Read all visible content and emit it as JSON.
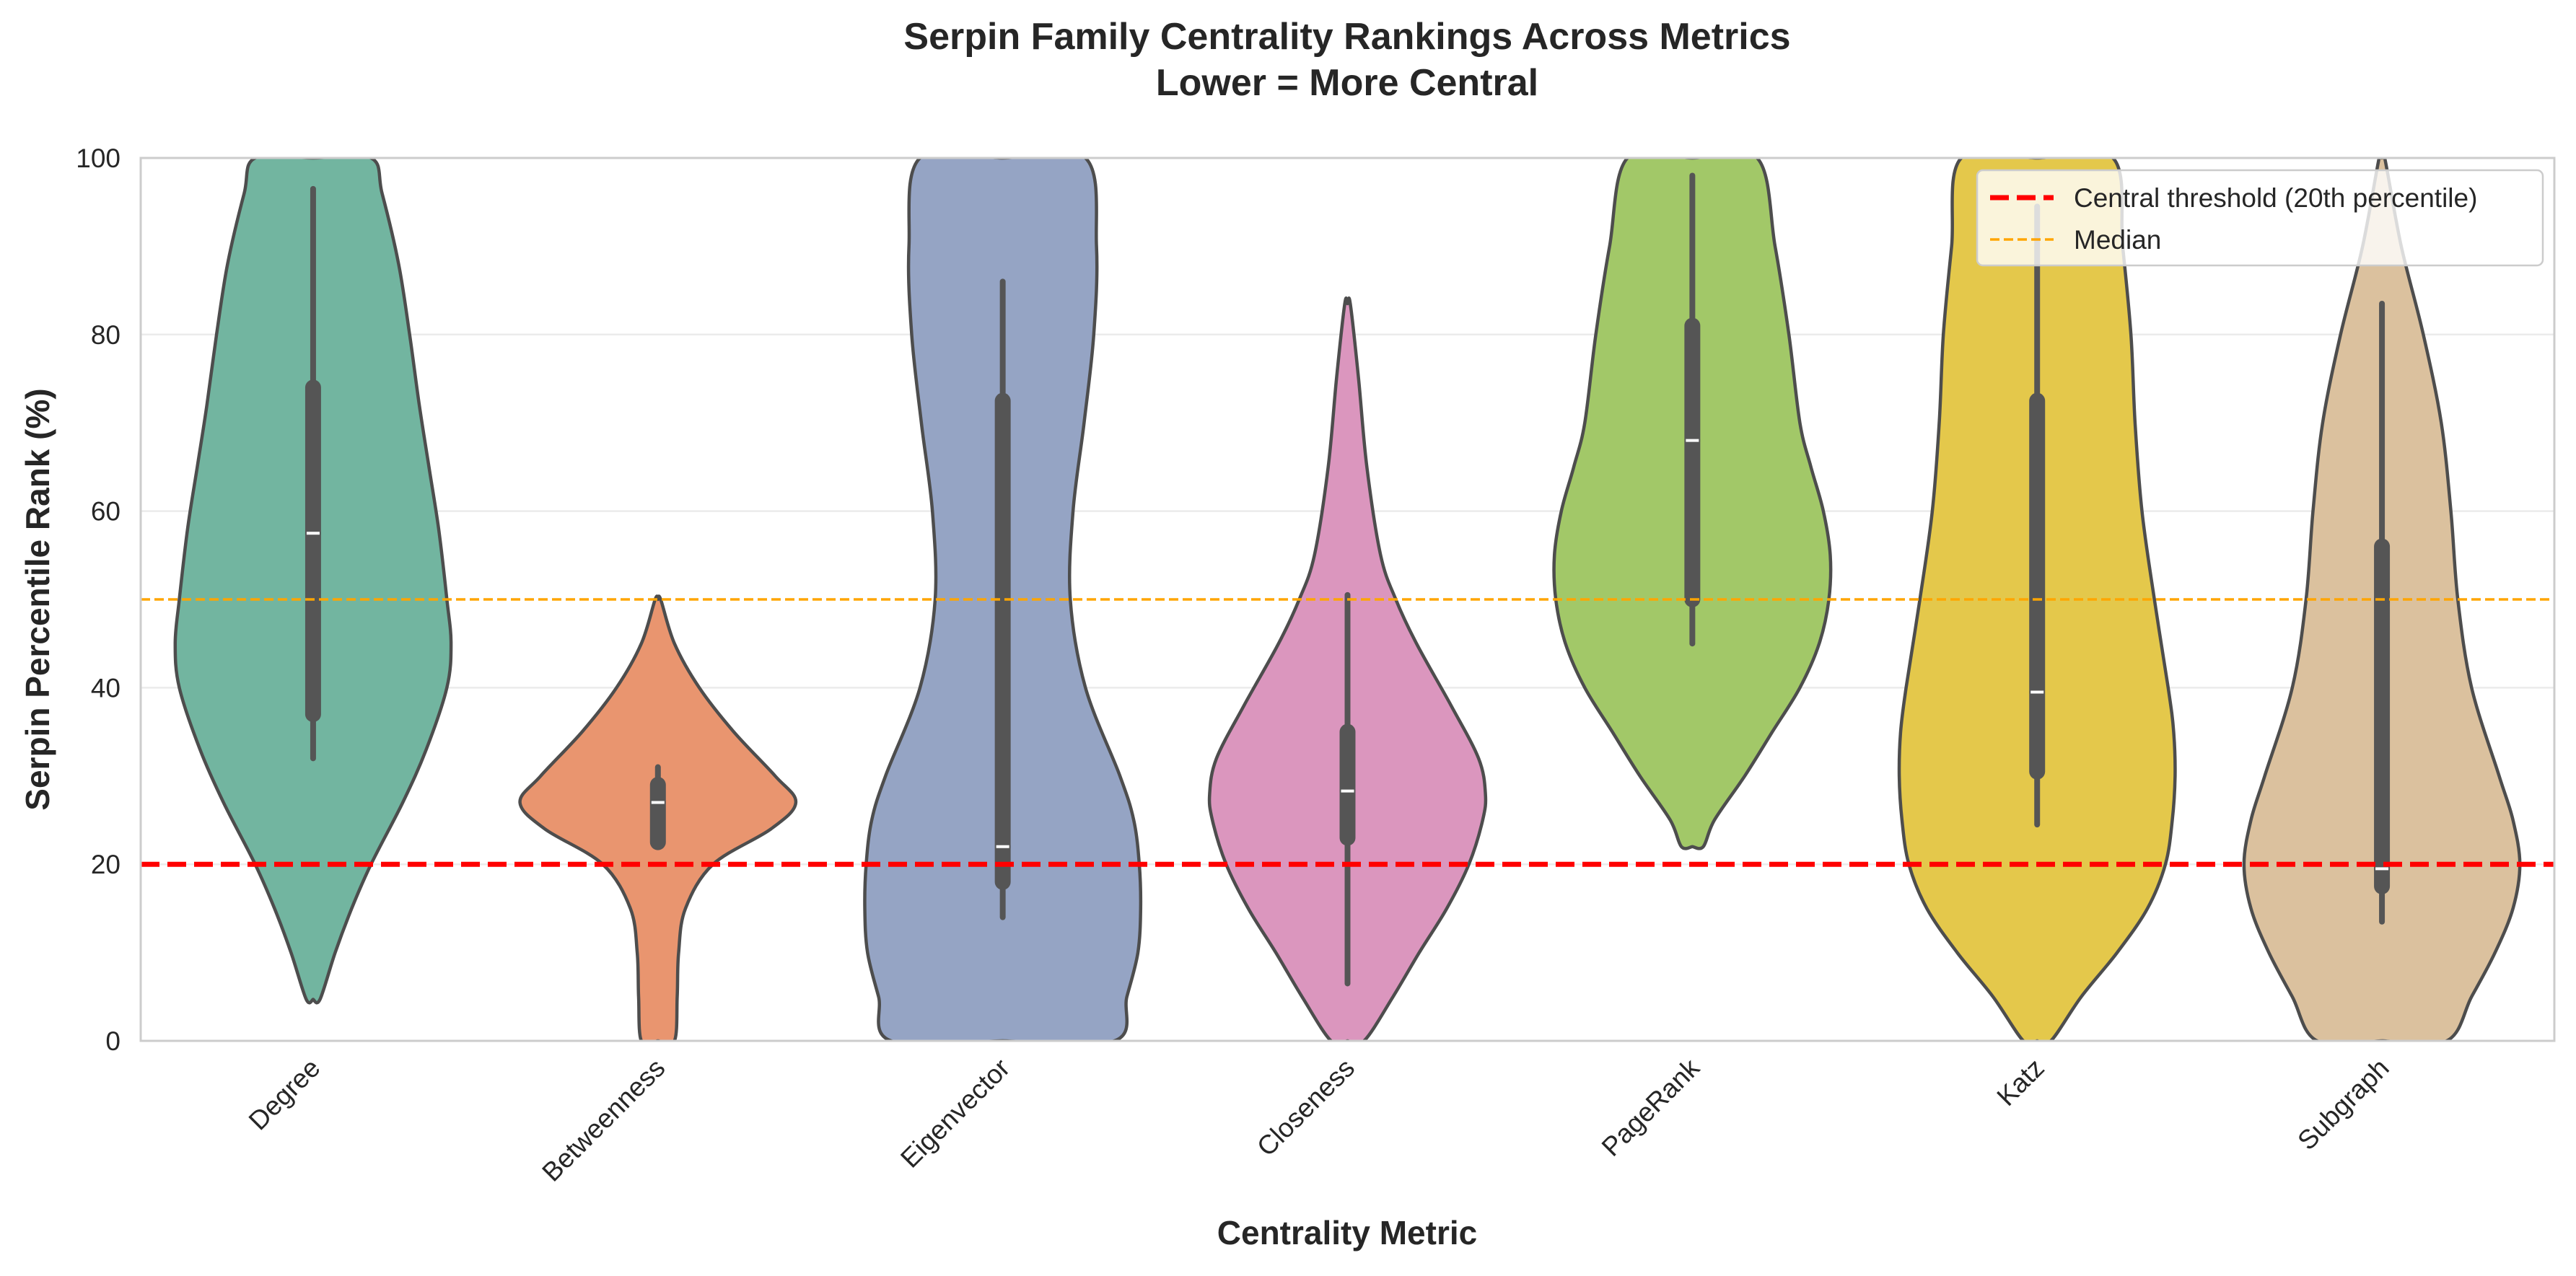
{
  "chart_data": {
    "type": "violin",
    "title": "Serpin Family Centrality Rankings Across Metrics",
    "subtitle": "Lower = More Central",
    "xlabel": "Centrality Metric",
    "ylabel": "Serpin Percentile Rank (%)",
    "ylim": [
      0,
      100
    ],
    "yticks": [
      0,
      20,
      40,
      60,
      80,
      100
    ],
    "grid": "horizontal",
    "legend_position": "top-right",
    "categories": [
      "Degree",
      "Betweenness",
      "Eigenvector",
      "Closeness",
      "PageRank",
      "Katz",
      "Subgraph"
    ],
    "series": [
      {
        "category": "Degree",
        "color": "#72b5a0",
        "median": 57.5,
        "q1": 37,
        "q3": 74,
        "whisker_low": 32,
        "whisker_high": 96.5,
        "density": [
          [
            4.7,
            0.05
          ],
          [
            10,
            0.16
          ],
          [
            15,
            0.28
          ],
          [
            20,
            0.42
          ],
          [
            27,
            0.65
          ],
          [
            33,
            0.82
          ],
          [
            40,
            0.97
          ],
          [
            45,
            1.0
          ],
          [
            50,
            0.97
          ],
          [
            58,
            0.91
          ],
          [
            65,
            0.84
          ],
          [
            72,
            0.77
          ],
          [
            80,
            0.7
          ],
          [
            88,
            0.62
          ],
          [
            96,
            0.5
          ],
          [
            100,
            0.42
          ]
        ]
      },
      {
        "category": "Betweenness",
        "color": "#e9956f",
        "median": 27,
        "q1": 22.5,
        "q3": 29,
        "whisker_low": 22.5,
        "whisker_high": 31,
        "density": [
          [
            0,
            0.12
          ],
          [
            5,
            0.14
          ],
          [
            10,
            0.15
          ],
          [
            15,
            0.2
          ],
          [
            20,
            0.4
          ],
          [
            24,
            0.82
          ],
          [
            27,
            1.0
          ],
          [
            30,
            0.85
          ],
          [
            35,
            0.55
          ],
          [
            40,
            0.3
          ],
          [
            45,
            0.12
          ],
          [
            50,
            0.02
          ]
        ]
      },
      {
        "category": "Eigenvector",
        "color": "#95a4c4",
        "median": 22,
        "q1": 18,
        "q3": 72.5,
        "whisker_low": 14,
        "whisker_high": 86,
        "density": [
          [
            0,
            0.81
          ],
          [
            5,
            0.9
          ],
          [
            10,
            0.98
          ],
          [
            15,
            1.0
          ],
          [
            20,
            0.99
          ],
          [
            25,
            0.95
          ],
          [
            30,
            0.85
          ],
          [
            40,
            0.6
          ],
          [
            50,
            0.49
          ],
          [
            60,
            0.51
          ],
          [
            70,
            0.59
          ],
          [
            80,
            0.66
          ],
          [
            90,
            0.68
          ],
          [
            100,
            0.6
          ]
        ]
      },
      {
        "category": "Closeness",
        "color": "#db96be",
        "median": 28.3,
        "q1": 23,
        "q3": 35,
        "whisker_low": 6.5,
        "whisker_high": 50.5,
        "density": [
          [
            0,
            0.12
          ],
          [
            5,
            0.33
          ],
          [
            10,
            0.52
          ],
          [
            15,
            0.72
          ],
          [
            20,
            0.88
          ],
          [
            25,
            0.98
          ],
          [
            28,
            1.0
          ],
          [
            32,
            0.95
          ],
          [
            38,
            0.75
          ],
          [
            45,
            0.5
          ],
          [
            50,
            0.35
          ],
          [
            55,
            0.24
          ],
          [
            65,
            0.14
          ],
          [
            75,
            0.08
          ],
          [
            83.5,
            0.02
          ]
        ]
      },
      {
        "category": "PageRank",
        "color": "#a2c868",
        "median": 68,
        "q1": 50,
        "q3": 81,
        "whisker_low": 45,
        "whisker_high": 98,
        "density": [
          [
            22,
            0.08
          ],
          [
            25,
            0.16
          ],
          [
            30,
            0.38
          ],
          [
            35,
            0.58
          ],
          [
            40,
            0.78
          ],
          [
            45,
            0.92
          ],
          [
            50,
            0.99
          ],
          [
            55,
            1.0
          ],
          [
            60,
            0.95
          ],
          [
            65,
            0.86
          ],
          [
            70,
            0.78
          ],
          [
            80,
            0.7
          ],
          [
            90,
            0.6
          ],
          [
            100,
            0.47
          ]
        ]
      },
      {
        "category": "Katz",
        "color": "#e4c84b",
        "median": 39.5,
        "q1": 30.5,
        "q3": 72.5,
        "whisker_low": 24.5,
        "whisker_high": 94.5,
        "density": [
          [
            0,
            0.1
          ],
          [
            5,
            0.32
          ],
          [
            10,
            0.58
          ],
          [
            15,
            0.8
          ],
          [
            20,
            0.93
          ],
          [
            25,
            0.98
          ],
          [
            30,
            1.0
          ],
          [
            35,
            0.99
          ],
          [
            40,
            0.95
          ],
          [
            50,
            0.85
          ],
          [
            60,
            0.76
          ],
          [
            70,
            0.71
          ],
          [
            80,
            0.68
          ],
          [
            90,
            0.62
          ],
          [
            100,
            0.55
          ]
        ]
      },
      {
        "category": "Subgraph",
        "color": "#dbc19e",
        "median": 19.5,
        "q1": 17.5,
        "q3": 56,
        "whisker_low": 13.5,
        "whisker_high": 83.5,
        "density": [
          [
            0,
            0.47
          ],
          [
            5,
            0.65
          ],
          [
            10,
            0.82
          ],
          [
            15,
            0.95
          ],
          [
            20,
            1.0
          ],
          [
            25,
            0.95
          ],
          [
            30,
            0.85
          ],
          [
            40,
            0.65
          ],
          [
            50,
            0.55
          ],
          [
            60,
            0.5
          ],
          [
            70,
            0.43
          ],
          [
            80,
            0.3
          ],
          [
            90,
            0.14
          ],
          [
            100,
            0.02
          ]
        ]
      }
    ],
    "reference_lines": [
      {
        "label": "Central threshold (20th percentile)",
        "y": 20,
        "color": "#ff0000",
        "style": "dashed-thick"
      },
      {
        "label": "Median",
        "y": 50,
        "color": "#ffa500",
        "style": "dashed-thin"
      }
    ]
  }
}
